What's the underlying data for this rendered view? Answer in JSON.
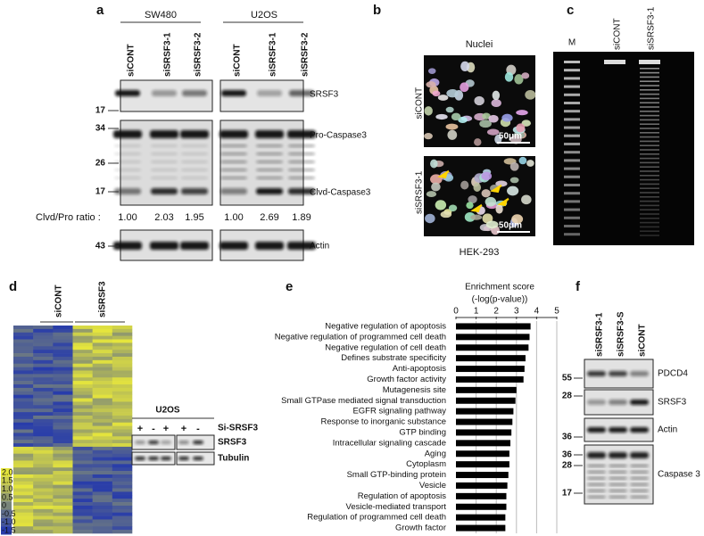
{
  "panels": {
    "a": {
      "letter": "a",
      "groups": [
        "SW480",
        "U2OS"
      ],
      "lanes": [
        "siCONT",
        "siSRSF3-1",
        "siSRSF3-2",
        "siCONT",
        "siSRSF3-1",
        "siSRSF3-2"
      ],
      "markers": [
        "17",
        "34",
        "26",
        "17",
        "43"
      ],
      "bands": [
        "SRSF3",
        "Pro-Caspase3",
        "Clvd-Caspase3",
        "Actin"
      ],
      "ratio_label": "Clvd/Pro ratio :",
      "ratios": [
        "1.00",
        "2.03",
        "1.95",
        "1.00",
        "2.69",
        "1.89"
      ]
    },
    "b": {
      "letter": "b",
      "title": "Nuclei",
      "rows": [
        "siCONT",
        "siSRSF3-1"
      ],
      "scale_bars": [
        "50μm",
        "50μm"
      ],
      "cell_line": "HEK-293"
    },
    "c": {
      "letter": "c",
      "lanes": [
        "M",
        "siCONT",
        "siSRSF3-1"
      ]
    },
    "d": {
      "letter": "d",
      "groups": [
        "siCONT",
        "siSRSF3"
      ],
      "color_scale": [
        "2.0",
        "1.5",
        "1.0",
        "0.5",
        "0",
        "-0.5",
        "-1.0",
        "-1.5"
      ],
      "inset": {
        "title": "U2OS",
        "treatment": "Si-SRSF3",
        "signs": [
          "+",
          "-",
          "+",
          "+",
          "-"
        ],
        "bands": [
          "SRSF3",
          "Tubulin"
        ]
      }
    },
    "e": {
      "letter": "e"
    },
    "f": {
      "letter": "f",
      "lanes": [
        "siSRSF3-1",
        "siSRSF3-S",
        "siCONT"
      ],
      "markers": [
        "55",
        "28",
        "36",
        "36",
        "28",
        "17"
      ],
      "bands": [
        "PDCD4",
        "SRSF3",
        "Actin",
        "Caspase 3"
      ]
    }
  },
  "chart_data": {
    "type": "bar",
    "orientation": "horizontal",
    "title": "Enrichment score",
    "subtitle": "(-log(p-value))",
    "categories": [
      "Negative regulation of apoptosis",
      "Negative regulation of programmed cell death",
      "Negative regulation of cell death",
      "Defines substrate specificity",
      "Anti-apoptosis",
      "Growth factor activity",
      "Mutagenesis site",
      "Small GTPase mediated signal transduction",
      "EGFR signaling pathway",
      "Response to inorganic substance",
      "GTP binding",
      "Intracellular signaling cascade",
      "Aging",
      "Cytoplasm",
      "Small GTP-binding protein",
      "Vesicle",
      "Regulation of apoptosis",
      "Vesicle-mediated transport",
      "Regulation of programmed cell death",
      "Growth factor"
    ],
    "values": [
      3.7,
      3.65,
      3.6,
      3.45,
      3.4,
      3.35,
      3.0,
      2.95,
      2.85,
      2.8,
      2.75,
      2.7,
      2.65,
      2.65,
      2.6,
      2.55,
      2.5,
      2.5,
      2.45,
      2.45
    ],
    "color": "#000000",
    "xlim": [
      0,
      5
    ],
    "xticks": [
      0,
      1,
      2,
      3,
      4,
      5
    ],
    "grid": true
  }
}
